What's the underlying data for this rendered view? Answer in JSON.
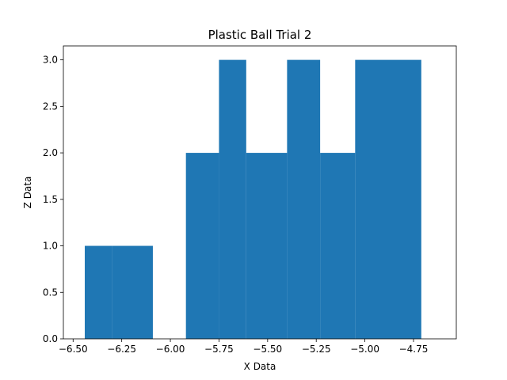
{
  "chart_data": {
    "type": "bar",
    "title": "Plastic Ball Trial 2",
    "xlabel": "X Data",
    "ylabel": "Z Data",
    "xlim": [
      -6.55,
      -4.53
    ],
    "ylim": [
      0,
      3.15
    ],
    "grid": false,
    "color": "#1f77b4",
    "bins": [
      {
        "start": -6.44,
        "end": -6.3,
        "count": 1
      },
      {
        "start": -6.3,
        "end": -6.09,
        "count": 1
      },
      {
        "start": -5.92,
        "end": -5.75,
        "count": 2
      },
      {
        "start": -5.75,
        "end": -5.61,
        "count": 3
      },
      {
        "start": -5.61,
        "end": -5.4,
        "count": 2
      },
      {
        "start": -5.4,
        "end": -5.23,
        "count": 3
      },
      {
        "start": -5.23,
        "end": -5.05,
        "count": 2
      },
      {
        "start": -5.05,
        "end": -4.71,
        "count": 3
      }
    ],
    "x_ticks": [
      {
        "value": -6.5,
        "label": "−6.50"
      },
      {
        "value": -6.25,
        "label": "−6.25"
      },
      {
        "value": -6.0,
        "label": "−6.00"
      },
      {
        "value": -5.75,
        "label": "−5.75"
      },
      {
        "value": -5.5,
        "label": "−5.50"
      },
      {
        "value": -5.25,
        "label": "−5.25"
      },
      {
        "value": -5.0,
        "label": "−5.00"
      },
      {
        "value": -4.75,
        "label": "−4.75"
      }
    ],
    "y_ticks": [
      {
        "value": 0,
        "label": "0.0"
      },
      {
        "value": 0.5,
        "label": "0.5"
      },
      {
        "value": 1.0,
        "label": "1.0"
      },
      {
        "value": 1.5,
        "label": "1.5"
      },
      {
        "value": 2.0,
        "label": "2.0"
      },
      {
        "value": 2.5,
        "label": "2.5"
      },
      {
        "value": 3.0,
        "label": "3.0"
      }
    ]
  }
}
